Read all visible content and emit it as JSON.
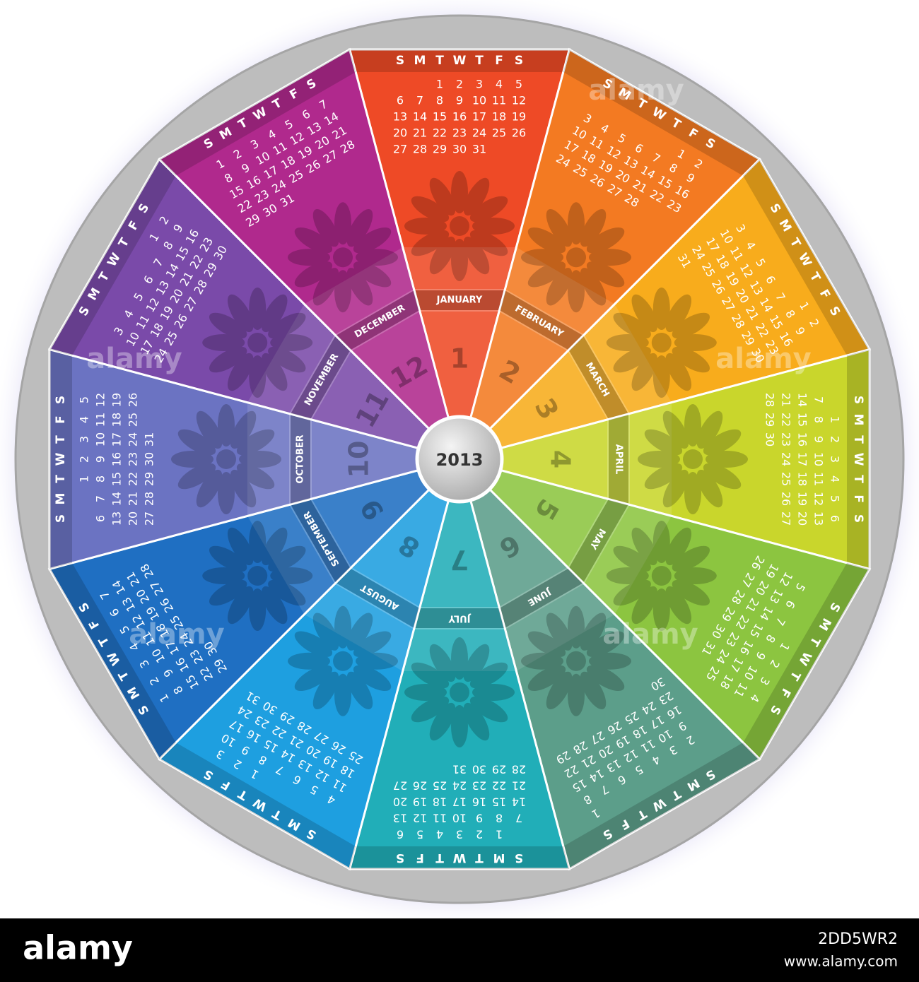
{
  "year": "2013",
  "weekdays": [
    "S",
    "M",
    "T",
    "W",
    "T",
    "F",
    "S"
  ],
  "months": [
    {
      "name": "JANUARY",
      "number": 1,
      "color": "#ee4a26",
      "weeks": [
        [
          null,
          null,
          1,
          2,
          3,
          4,
          5
        ],
        [
          6,
          7,
          8,
          9,
          10,
          11,
          12
        ],
        [
          13,
          14,
          15,
          16,
          17,
          18,
          19
        ],
        [
          20,
          21,
          22,
          23,
          24,
          25,
          26
        ],
        [
          27,
          28,
          29,
          30,
          31
        ]
      ]
    },
    {
      "name": "FEBRUARY",
      "number": 2,
      "color": "#f37a22",
      "weeks": [
        [
          null,
          null,
          null,
          null,
          null,
          1,
          2
        ],
        [
          3,
          4,
          5,
          6,
          7,
          8,
          9
        ],
        [
          10,
          11,
          12,
          13,
          14,
          15,
          16
        ],
        [
          17,
          18,
          19,
          20,
          21,
          22,
          23
        ],
        [
          24,
          25,
          26,
          27,
          28
        ]
      ]
    },
    {
      "name": "MARCH",
      "number": 3,
      "color": "#f8ac1c",
      "weeks": [
        [
          null,
          null,
          null,
          null,
          null,
          1,
          2
        ],
        [
          3,
          4,
          5,
          6,
          7,
          8,
          9
        ],
        [
          10,
          11,
          12,
          13,
          14,
          15,
          16
        ],
        [
          17,
          18,
          19,
          20,
          21,
          22,
          23
        ],
        [
          24,
          25,
          26,
          27,
          28,
          29,
          30
        ],
        [
          31
        ]
      ]
    },
    {
      "name": "APRIL",
      "number": 4,
      "color": "#c9d62c",
      "weeks": [
        [
          null,
          1,
          2,
          3,
          4,
          5,
          6
        ],
        [
          7,
          8,
          9,
          10,
          11,
          12,
          13
        ],
        [
          14,
          15,
          16,
          17,
          18,
          19,
          20
        ],
        [
          21,
          22,
          23,
          24,
          25,
          26,
          27
        ],
        [
          28,
          29,
          30
        ]
      ]
    },
    {
      "name": "MAY",
      "number": 5,
      "color": "#8cc540",
      "weeks": [
        [
          null,
          null,
          null,
          1,
          2,
          3,
          4
        ],
        [
          5,
          6,
          7,
          8,
          9,
          10,
          11
        ],
        [
          12,
          13,
          14,
          15,
          16,
          17,
          18
        ],
        [
          19,
          20,
          21,
          22,
          23,
          24,
          25
        ],
        [
          26,
          27,
          28,
          29,
          30,
          31
        ]
      ]
    },
    {
      "name": "JUNE",
      "number": 6,
      "color": "#5c9e8a",
      "weeks": [
        [
          null,
          null,
          null,
          null,
          null,
          null,
          1
        ],
        [
          2,
          3,
          4,
          5,
          6,
          7,
          8
        ],
        [
          9,
          10,
          11,
          12,
          13,
          14,
          15
        ],
        [
          16,
          17,
          18,
          19,
          20,
          21,
          22
        ],
        [
          23,
          24,
          25,
          26,
          27,
          28,
          29
        ],
        [
          30
        ]
      ]
    },
    {
      "name": "JULY",
      "number": 7,
      "color": "#21aeb8",
      "weeks": [
        [
          null,
          1,
          2,
          3,
          4,
          5,
          6
        ],
        [
          7,
          8,
          9,
          10,
          11,
          12,
          13
        ],
        [
          14,
          15,
          16,
          17,
          18,
          19,
          20
        ],
        [
          21,
          22,
          23,
          24,
          25,
          26,
          27
        ],
        [
          28,
          29,
          30,
          31
        ]
      ]
    },
    {
      "name": "AUGUST",
      "number": 8,
      "color": "#1e9fe0",
      "weeks": [
        [
          null,
          null,
          null,
          null,
          1,
          2,
          3
        ],
        [
          4,
          5,
          6,
          7,
          8,
          9,
          10
        ],
        [
          11,
          12,
          13,
          14,
          15,
          16,
          17
        ],
        [
          18,
          19,
          20,
          21,
          22,
          23,
          24
        ],
        [
          25,
          26,
          27,
          28,
          29,
          30,
          31
        ]
      ]
    },
    {
      "name": "SEPTEMBER",
      "number": 9,
      "color": "#1f6fc2",
      "weeks": [
        [
          1,
          2,
          3,
          4,
          5,
          6,
          7
        ],
        [
          8,
          9,
          10,
          11,
          12,
          13,
          14
        ],
        [
          15,
          16,
          17,
          18,
          19,
          20,
          21
        ],
        [
          22,
          23,
          24,
          25,
          26,
          27,
          28
        ],
        [
          29,
          30
        ]
      ]
    },
    {
      "name": "OCTOBER",
      "number": 10,
      "color": "#6b73c2",
      "weeks": [
        [
          null,
          null,
          1,
          2,
          3,
          4,
          5
        ],
        [
          6,
          7,
          8,
          9,
          10,
          11,
          12
        ],
        [
          13,
          14,
          15,
          16,
          17,
          18,
          19
        ],
        [
          20,
          21,
          22,
          23,
          24,
          25,
          26
        ],
        [
          27,
          28,
          29,
          30,
          31
        ]
      ]
    },
    {
      "name": "NOVEMBER",
      "number": 11,
      "color": "#7a4aa9",
      "weeks": [
        [
          null,
          null,
          null,
          null,
          null,
          1,
          2
        ],
        [
          3,
          4,
          5,
          6,
          7,
          8,
          9
        ],
        [
          10,
          11,
          12,
          13,
          14,
          15,
          16
        ],
        [
          17,
          18,
          19,
          20,
          21,
          22,
          23
        ],
        [
          24,
          25,
          26,
          27,
          28,
          29,
          30
        ]
      ]
    },
    {
      "name": "DECEMBER",
      "number": 12,
      "color": "#b0298d",
      "weeks": [
        [
          1,
          2,
          3,
          4,
          5,
          6,
          7
        ],
        [
          8,
          9,
          10,
          11,
          12,
          13,
          14
        ],
        [
          15,
          16,
          17,
          18,
          19,
          20,
          21
        ],
        [
          22,
          23,
          24,
          25,
          26,
          27,
          28
        ],
        [
          29,
          30,
          31
        ]
      ]
    }
  ],
  "watermark": "alamy",
  "footer": {
    "logo": "alamy",
    "image_id": "2DD5WR2",
    "url": "www.alamy.com"
  }
}
